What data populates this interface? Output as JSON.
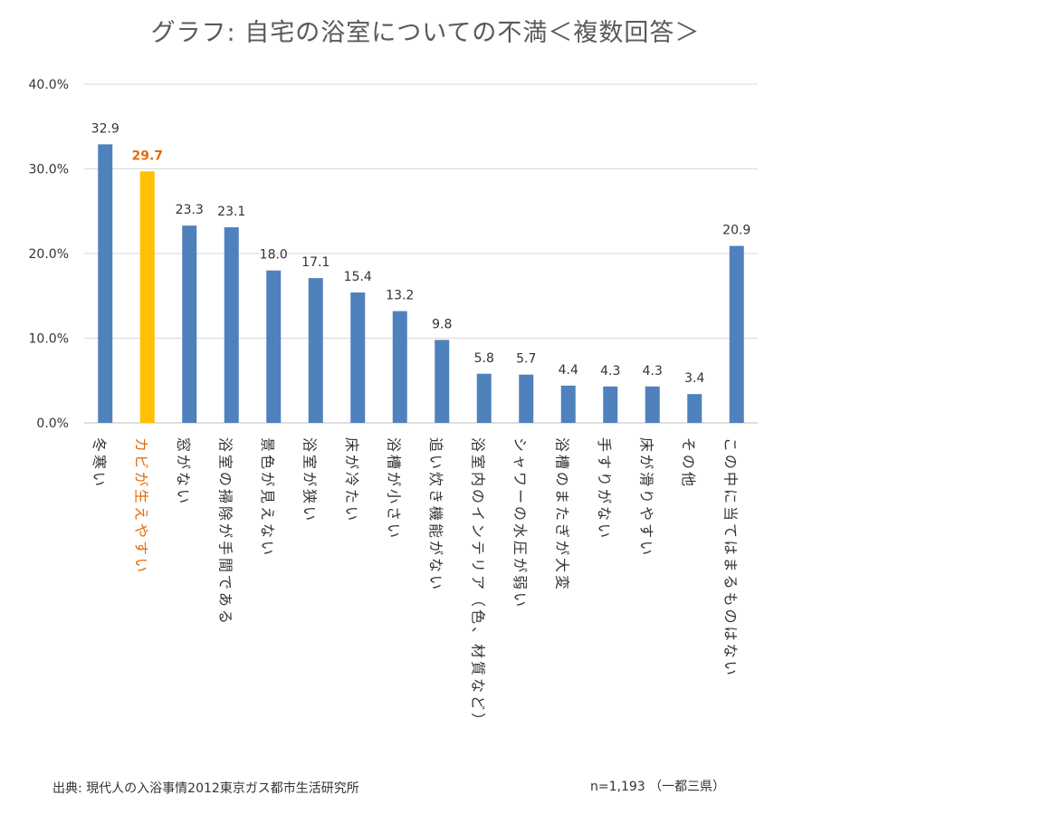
{
  "chart_data": {
    "type": "bar",
    "title": "グラフ: 自宅の浴室についての不満＜複数回答＞",
    "categories": [
      "冬寒い",
      "カビが生えやすい",
      "窓がない",
      "浴室の掃除が手間である",
      "景色が見えない",
      "浴室が狭い",
      "床が冷たい",
      "浴槽が小さい",
      "追い炊き機能がない",
      "浴室内のインテリア（色、材質など）",
      "シャワーの水圧が弱い",
      "浴槽のまたぎが大変",
      "手すりがない",
      "床が滑りやすい",
      "その他",
      "この中に当てはまるものはない"
    ],
    "values": [
      32.9,
      29.7,
      23.3,
      23.1,
      18.0,
      17.1,
      15.4,
      13.2,
      9.8,
      5.8,
      5.7,
      4.4,
      4.3,
      4.3,
      3.4,
      20.9
    ],
    "value_labels": [
      "32.9",
      "29.7",
      "23.3",
      "23.1",
      "18.0",
      "17.1",
      "15.4",
      "13.2",
      "9.8",
      "5.8",
      "5.7",
      "4.4",
      "4.3",
      "4.3",
      "3.4",
      "20.9"
    ],
    "highlight_index": 1,
    "ylim": [
      0,
      40
    ],
    "yticks": [
      "0.0%",
      "10.0%",
      "20.0%",
      "30.0%",
      "40.0%"
    ],
    "grid": true,
    "xlabel": "",
    "ylabel": ""
  },
  "colors": {
    "bar": "#4f81bd",
    "highlight_bar": "#ffc000",
    "highlight_text": "#e46c0a",
    "text": "#333333",
    "grid": "#d9d9d9"
  },
  "footer": {
    "source": "出典: 現代人の入浴事情2012東京ガス都市生活研究所",
    "sample": "n=1,193 （一都三県）"
  }
}
